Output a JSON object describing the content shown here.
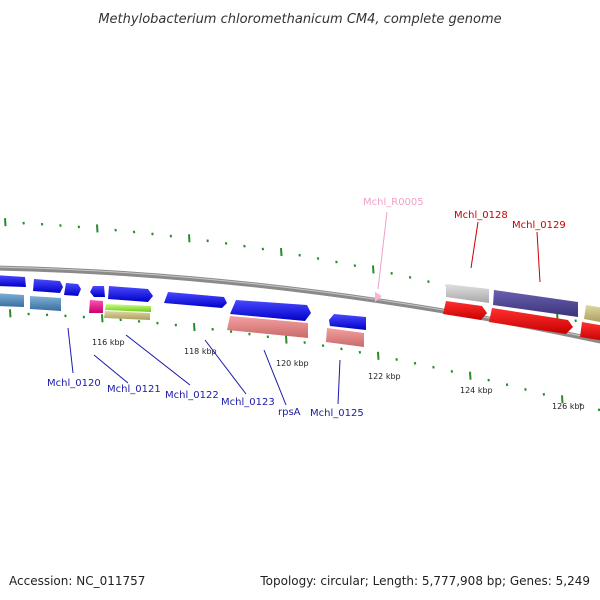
{
  "title": "Methylobacterium chloromethanicum CM4, complete genome",
  "footer": {
    "accession": "Accession: NC_011757",
    "topology": "Topology: circular; Length: 5,777,908 bp; Genes: 5,249"
  },
  "scale_labels": [
    "116 kbp",
    "118 kbp",
    "120 kbp",
    "122 kbp",
    "124 kbp",
    "126 kbp"
  ],
  "gene_labels": {
    "mchl_0120": "Mchl_0120",
    "mchl_0121": "Mchl_0121",
    "mchl_0122": "Mchl_0122",
    "mchl_0123": "Mchl_0123",
    "rpsa": "rpsA",
    "mchl_0125": "Mchl_0125",
    "mchl_r0005": "Mchl_R0005",
    "mchl_0128": "Mchl_0128",
    "mchl_0129": "Mchl_0129"
  },
  "colors": {
    "backbone": "#8a8a8a",
    "label_blue": "#1a1aa8",
    "label_red": "#cc0000",
    "label_pink": "#f0a0c8",
    "tick_green": "#2a8a2a"
  }
}
